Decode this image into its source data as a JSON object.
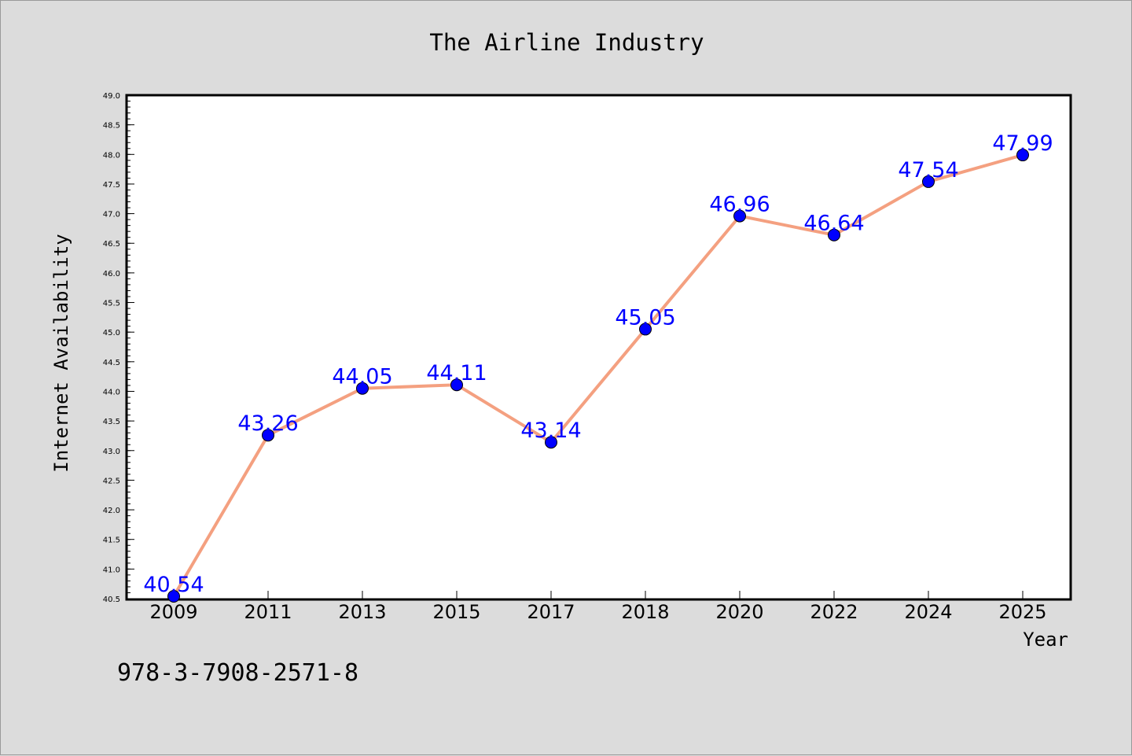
{
  "chart_data": {
    "type": "line",
    "title": "The Airline Industry",
    "xlabel": "Year",
    "ylabel": "Internet Availability",
    "categories": [
      "2009",
      "2011",
      "2013",
      "2015",
      "2017",
      "2018",
      "2020",
      "2022",
      "2024",
      "2025"
    ],
    "series": [
      {
        "values": [
          40.54,
          43.26,
          44.05,
          44.11,
          43.14,
          45.05,
          46.96,
          46.64,
          47.54,
          47.99
        ]
      }
    ],
    "data_labels": [
      "40.54",
      "43.26",
      "44.05",
      "44.11",
      "43.14",
      "45.05",
      "46.96",
      "46.64",
      "47.54",
      "47.99"
    ],
    "ylim": [
      40.5,
      49.0
    ],
    "yticks": [
      "40.5",
      "41.0",
      "41.5",
      "42.0",
      "42.5",
      "43.0",
      "43.5",
      "44.0",
      "44.5",
      "45.0",
      "45.5",
      "46.0",
      "46.5",
      "47.0",
      "47.5",
      "48.0",
      "48.5",
      "49.0"
    ],
    "grid": false,
    "colors": {
      "line": "#f4a080",
      "marker": "#0000ff",
      "label": "#0000ff",
      "background": "#dcdcdc",
      "plot_background": "#ffffff"
    }
  },
  "footer_code": "978-3-7908-2571-8"
}
